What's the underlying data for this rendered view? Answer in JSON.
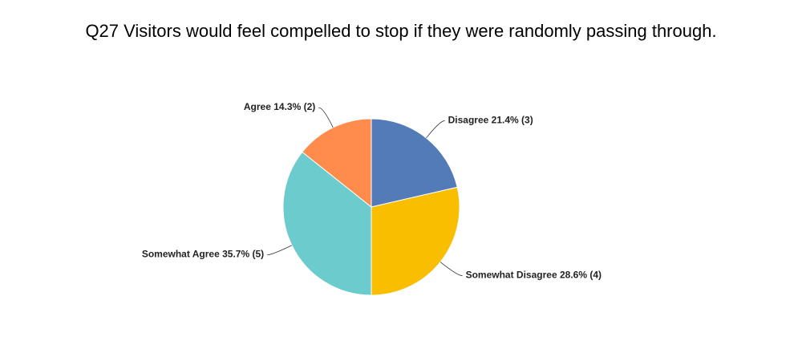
{
  "chart_data": {
    "type": "pie",
    "title": "Q27 Visitors would feel compelled to stop if they were randomly passing through.",
    "categories": [
      "Disagree",
      "Somewhat Disagree",
      "Somewhat Agree",
      "Agree"
    ],
    "values": [
      21.4,
      28.6,
      35.7,
      14.3
    ],
    "value_labels": [
      "21.4% (3)",
      "28.6% (4)",
      "35.7% (5)",
      "14.3% (2)"
    ],
    "colors": [
      "#537bb8",
      "#f9be00",
      "#6ccbcd",
      "#ff8c4d"
    ]
  }
}
